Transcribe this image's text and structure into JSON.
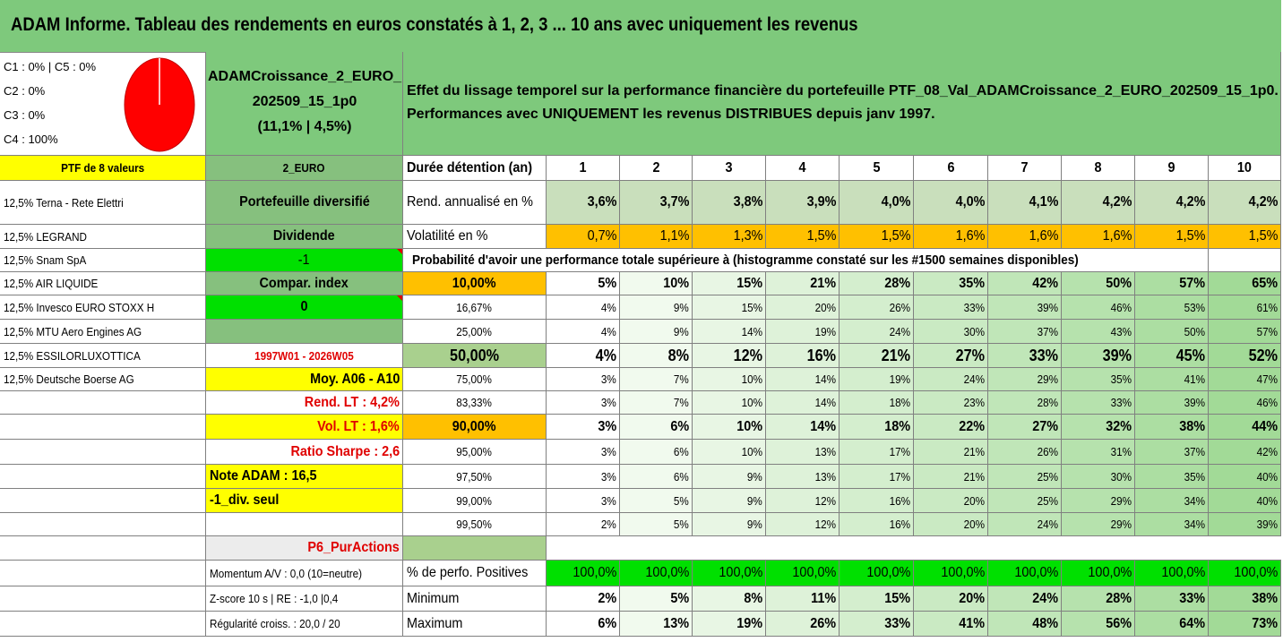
{
  "title": "ADAM Informe. Tableau des rendements en euros constatés à 1, 2, 3 ... 10 ans avec uniquement les revenus",
  "composition": [
    "C1 : 0% | C5 : 0%",
    "C2 : 0%",
    "C3 : 0%",
    "C4 : 100%"
  ],
  "pie": {
    "C4": 100,
    "color": "#ff0000"
  },
  "portfolio": {
    "name_line1": "ADAMCroissance_2_EURO_",
    "name_line2": "202509_15_1p0",
    "name_line3": "(11,1% | 4,5%)"
  },
  "description": {
    "line1": "Effet du lissage temporel sur la performance financière du portefeuille PTF_08_Val_ADAMCroissance_2_EURO_202509_15_1p0.",
    "line2": "Performances avec UNIQUEMENT les revenus DISTRIBUES depuis janv 1997."
  },
  "ptf_header": "PTF de 8 valeurs",
  "currency": "2_EURO",
  "holdings": [
    "12,5% Terna - Rete Elettri",
    "12,5% LEGRAND",
    "12,5% Snam SpA",
    "12,5% AIR LIQUIDE",
    "12,5% Invesco EURO STOXX H",
    "12,5% MTU Aero Engines AG",
    "12,5% ESSILORLUXOTTICA",
    "12,5% Deutsche Boerse AG"
  ],
  "side": {
    "diversifie": "Portefeuille diversifié",
    "dividende": "Dividende",
    "minus1": "-1",
    "compar": "Compar. index",
    "zero": "0",
    "period": "1997W01 - 2026W05",
    "moy": "Moy. A06 - A10",
    "rend_lt": "Rend. LT : 4,2%",
    "vol_lt": "Vol. LT : 1,6%",
    "sharpe": "Ratio Sharpe : 2,6",
    "note": "Note ADAM : 16,5",
    "div_seul": "-1_div. seul",
    "p6": "P6_PurActions",
    "momentum": "Momentum A/V : 0,0 (10=neutre)",
    "zscore": "Z-score 10 s | RE : -1,0 |0,4",
    "regularite": "Régularité croiss. : 20,0 / 20"
  },
  "table": {
    "duration_label": "Durée détention (an)",
    "years": [
      "1",
      "2",
      "3",
      "4",
      "5",
      "6",
      "7",
      "8",
      "9",
      "10"
    ],
    "rend_label": "Rend. annualisé en %",
    "rend": [
      "3,6%",
      "3,7%",
      "3,8%",
      "3,9%",
      "4,0%",
      "4,0%",
      "4,1%",
      "4,2%",
      "4,2%",
      "4,2%"
    ],
    "vol_label": "Volatilité en %",
    "vol": [
      "0,7%",
      "1,1%",
      "1,3%",
      "1,5%",
      "1,5%",
      "1,6%",
      "1,6%",
      "1,6%",
      "1,5%",
      "1,5%"
    ],
    "prob_title": "Probabilité d'avoir une performance totale supérieure à (histogramme constaté sur les #1500 semaines disponibles)",
    "prob_rows": [
      {
        "p": "10,00%",
        "v": [
          "5%",
          "10%",
          "15%",
          "21%",
          "28%",
          "35%",
          "42%",
          "50%",
          "57%",
          "65%"
        ]
      },
      {
        "p": "16,67%",
        "v": [
          "4%",
          "9%",
          "15%",
          "20%",
          "26%",
          "33%",
          "39%",
          "46%",
          "53%",
          "61%"
        ]
      },
      {
        "p": "25,00%",
        "v": [
          "4%",
          "9%",
          "14%",
          "19%",
          "24%",
          "30%",
          "37%",
          "43%",
          "50%",
          "57%"
        ]
      },
      {
        "p": "50,00%",
        "v": [
          "4%",
          "8%",
          "12%",
          "16%",
          "21%",
          "27%",
          "33%",
          "39%",
          "45%",
          "52%"
        ]
      },
      {
        "p": "75,00%",
        "v": [
          "3%",
          "7%",
          "10%",
          "14%",
          "19%",
          "24%",
          "29%",
          "35%",
          "41%",
          "47%"
        ]
      },
      {
        "p": "83,33%",
        "v": [
          "3%",
          "7%",
          "10%",
          "14%",
          "18%",
          "23%",
          "28%",
          "33%",
          "39%",
          "46%"
        ]
      },
      {
        "p": "90,00%",
        "v": [
          "3%",
          "6%",
          "10%",
          "14%",
          "18%",
          "22%",
          "27%",
          "32%",
          "38%",
          "44%"
        ]
      },
      {
        "p": "95,00%",
        "v": [
          "3%",
          "6%",
          "10%",
          "13%",
          "17%",
          "21%",
          "26%",
          "31%",
          "37%",
          "42%"
        ]
      },
      {
        "p": "97,50%",
        "v": [
          "3%",
          "6%",
          "9%",
          "13%",
          "17%",
          "21%",
          "25%",
          "30%",
          "35%",
          "40%"
        ]
      },
      {
        "p": "99,00%",
        "v": [
          "3%",
          "5%",
          "9%",
          "12%",
          "16%",
          "20%",
          "25%",
          "29%",
          "34%",
          "40%"
        ]
      },
      {
        "p": "99,50%",
        "v": [
          "2%",
          "5%",
          "9%",
          "12%",
          "16%",
          "20%",
          "24%",
          "29%",
          "34%",
          "39%"
        ]
      }
    ],
    "pos_label": "% de perfo. Positives",
    "pos": [
      "100,0%",
      "100,0%",
      "100,0%",
      "100,0%",
      "100,0%",
      "100,0%",
      "100,0%",
      "100,0%",
      "100,0%",
      "100,0%"
    ],
    "min_label": "Minimum",
    "min": [
      "2%",
      "5%",
      "8%",
      "11%",
      "15%",
      "20%",
      "24%",
      "28%",
      "33%",
      "38%"
    ],
    "max_label": "Maximum",
    "max": [
      "6%",
      "13%",
      "19%",
      "26%",
      "33%",
      "41%",
      "48%",
      "56%",
      "64%",
      "73%"
    ]
  }
}
